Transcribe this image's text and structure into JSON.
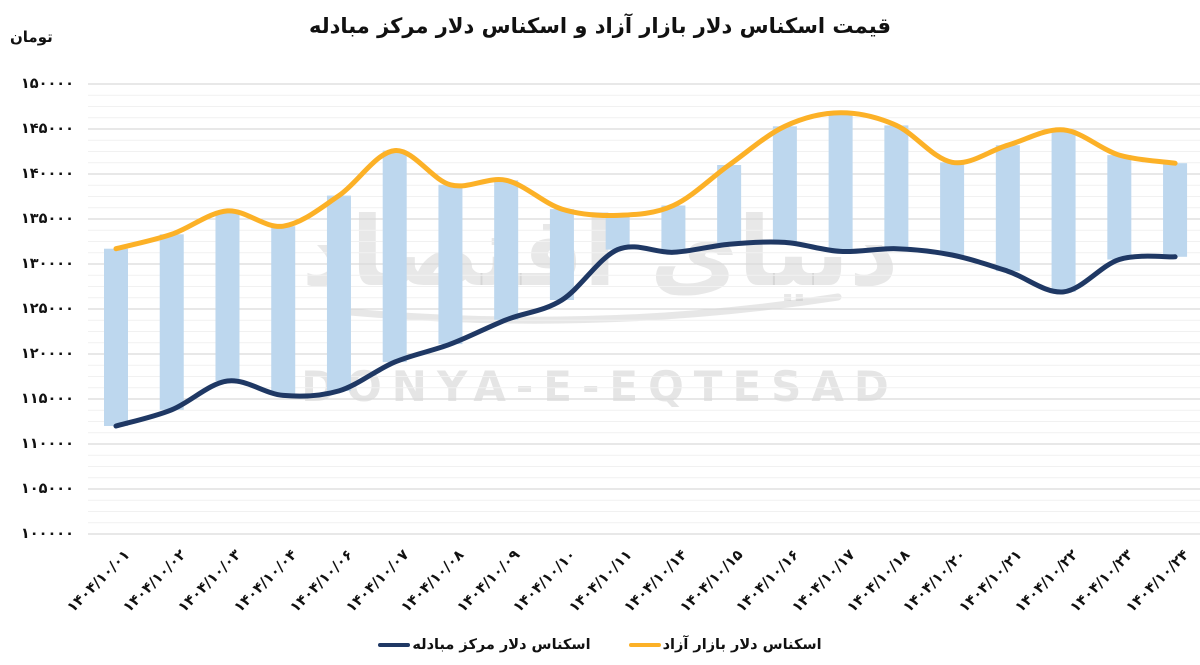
{
  "title": "قیمت اسکناس دلار بازار آزاد و اسکناس دلار مرکز مبادله",
  "y_axis_unit": "تومان",
  "watermark": {
    "persian": "دنیای اقتصاد",
    "latin": "DONYA-E-EQTESAD"
  },
  "legend": [
    {
      "label": "اسکناس دلار مرکز مبادله",
      "color": "#1F3864"
    },
    {
      "label": "اسکناس دلار بازار آزاد",
      "color": "#FCB127"
    }
  ],
  "colors": {
    "free_market_line": "#FCB127",
    "exchange_center_line": "#1F3864",
    "range_bar": "#BDD7EE",
    "grid_major": "#D9D9D9",
    "grid_minor": "#F1F1F1",
    "text": "#111111",
    "watermark": "#DDDDDD"
  },
  "chart_data": {
    "type": "line",
    "title": "قیمت اسکناس دلار بازار آزاد و اسکناس دلار مرکز مبادله",
    "ylabel": "تومان",
    "xlabel": "",
    "ylim": [
      100000,
      150000
    ],
    "y_tick_step": 5000,
    "y_minor_step": 1250,
    "grid": true,
    "legend_position": "bottom",
    "y_ticks": [
      150000,
      145000,
      140000,
      135000,
      130000,
      125000,
      120000,
      115000,
      110000,
      105000,
      100000
    ],
    "y_tick_labels_fa": [
      "۱۵۰۰۰۰",
      "۱۴۵۰۰۰",
      "۱۴۰۰۰۰",
      "۱۳۵۰۰۰",
      "۱۳۰۰۰۰",
      "۱۲۵۰۰۰",
      "۱۲۰۰۰۰",
      "۱۱۵۰۰۰",
      "۱۱۰۰۰۰",
      "۱۰۵۰۰۰",
      "۱۰۰۰۰۰"
    ],
    "categories": [
      "1404/10/01",
      "1404/10/02",
      "1404/10/03",
      "1404/10/04",
      "1404/10/06",
      "1404/10/07",
      "1404/10/08",
      "1404/10/09",
      "1404/10/10",
      "1404/10/11",
      "1404/10/14",
      "1404/10/15",
      "1404/10/16",
      "1404/10/17",
      "1404/10/18",
      "1404/10/20",
      "1404/10/21",
      "1404/10/22",
      "1404/10/23",
      "1404/10/24"
    ],
    "categories_fa": [
      "۱۴۰۴/۱۰/۰۱",
      "۱۴۰۴/۱۰/۰۲",
      "۱۴۰۴/۱۰/۰۳",
      "۱۴۰۴/۱۰/۰۴",
      "۱۴۰۴/۱۰/۰۶",
      "۱۴۰۴/۱۰/۰۷",
      "۱۴۰۴/۱۰/۰۸",
      "۱۴۰۴/۱۰/۰۹",
      "۱۴۰۴/۱۰/۱۰",
      "۱۴۰۴/۱۰/۱۱",
      "۱۴۰۴/۱۰/۱۴",
      "۱۴۰۴/۱۰/۱۵",
      "۱۴۰۴/۱۰/۱۶",
      "۱۴۰۴/۱۰/۱۷",
      "۱۴۰۴/۱۰/۱۸",
      "۱۴۰۴/۱۰/۲۰",
      "۱۴۰۴/۱۰/۲۱",
      "۱۴۰۴/۱۰/۲۲",
      "۱۴۰۴/۱۰/۲۳",
      "۱۴۰۴/۱۰/۲۴"
    ],
    "series": [
      {
        "name": "اسکناس دلار بازار آزاد",
        "color": "#FCB127",
        "values": [
          131700,
          133300,
          135900,
          134200,
          137600,
          142600,
          138800,
          139300,
          136100,
          135400,
          136500,
          141000,
          145300,
          146800,
          145400,
          141300,
          143200,
          144900,
          142100,
          141200
        ]
      },
      {
        "name": "اسکناس دلار مرکز مبادله",
        "color": "#1F3864",
        "values": [
          112000,
          113800,
          117000,
          115400,
          115900,
          119100,
          121100,
          123800,
          126000,
          131600,
          131300,
          132200,
          132400,
          131400,
          131700,
          131000,
          129200,
          126900,
          130500,
          130800
        ]
      }
    ],
    "range_bars": {
      "color": "#BDD7EE",
      "from_series": 0,
      "to_series": 1
    }
  }
}
